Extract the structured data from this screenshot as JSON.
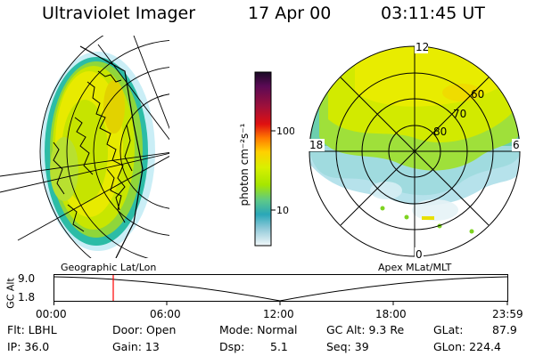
{
  "header": {
    "title": "Ultraviolet Imager",
    "date": "17 Apr 00",
    "time": "03:11:45 UT"
  },
  "colorbar": {
    "unit_label": "photon cm⁻²s⁻¹",
    "ticks": [
      "100",
      "10"
    ],
    "colors": [
      "#1a0a25",
      "#5a0a55",
      "#a0103a",
      "#e01010",
      "#ff7a00",
      "#ffd000",
      "#d8f000",
      "#a6e600",
      "#5cc88a",
      "#2aa7b8",
      "#8fc9d8",
      "#d8ecf2"
    ]
  },
  "polar_plot": {
    "mlt_labels": [
      "12",
      "18",
      "6",
      "0"
    ],
    "lat_labels": [
      "60",
      "70",
      "80"
    ]
  },
  "projection_labels": {
    "left": "Geographic Lat/Lon",
    "right": "Apex MLat/MLT"
  },
  "altitude_plot": {
    "y_label": "GC Alt",
    "y_ticks": [
      "9.0",
      "1.8"
    ],
    "x_ticks": [
      "00:00",
      "06:00",
      "12:00",
      "18:00",
      "23:59"
    ],
    "marker_color": "#ff0000"
  },
  "info": {
    "filter": "Flt: LBHL",
    "ip": "IP: 36.0",
    "door": "Door: Open",
    "gain": "Gain: 13",
    "mode": "Mode: Normal",
    "dsp": "Dsp:",
    "dsp_value": "5.1",
    "gc_alt": "GC Alt: 9.3 Re",
    "seq": "Seq: 39",
    "glat": "GLat:",
    "glat_value": "87.9",
    "glon": "GLon: 224.4"
  }
}
